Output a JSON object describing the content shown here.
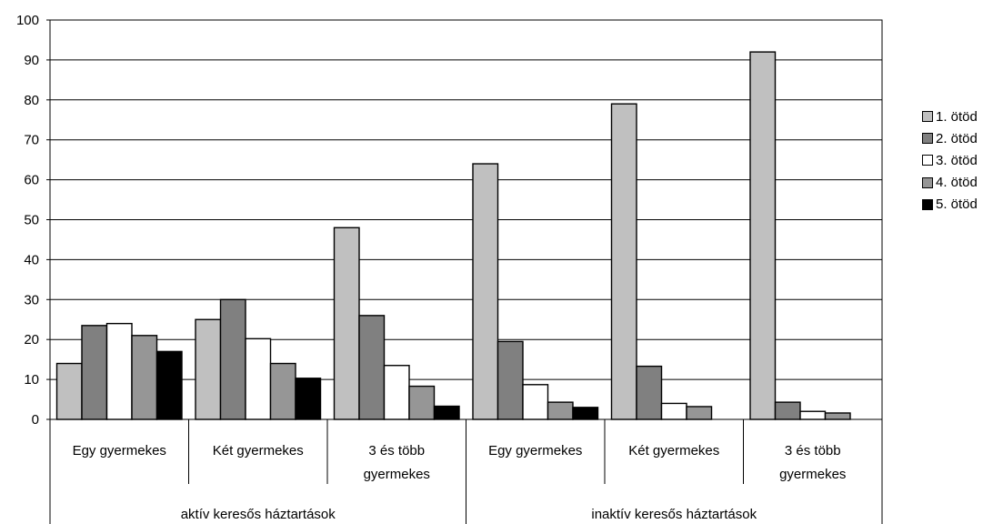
{
  "chart_data": {
    "type": "bar",
    "title": "",
    "xlabel": "",
    "ylabel": "",
    "ylim": [
      0,
      100
    ],
    "yticks": [
      0,
      10,
      20,
      30,
      40,
      50,
      60,
      70,
      80,
      90,
      100
    ],
    "grid": true,
    "legend_position": "right",
    "groups": [
      {
        "label": "aktív keresős háztartások",
        "categories": [
          "Egy gyermekes",
          "Két gyermekes",
          "3 és több gyermekes"
        ]
      },
      {
        "label": "inaktív keresős háztartások",
        "categories": [
          "Egy gyermekes",
          "Két gyermekes",
          "3 és több gyermekes"
        ]
      }
    ],
    "series": [
      {
        "name": "1. ötöd",
        "color": "#c0c0c0",
        "values": [
          14,
          25,
          48,
          64,
          79,
          92
        ]
      },
      {
        "name": "2. ötöd",
        "color": "#808080",
        "values": [
          23.5,
          30,
          26,
          19.5,
          13.3,
          4.3
        ]
      },
      {
        "name": "3. ötöd",
        "color": "#ffffff",
        "values": [
          24,
          20.2,
          13.5,
          8.7,
          4,
          2
        ]
      },
      {
        "name": "4. ötöd",
        "color": "#969696",
        "values": [
          21,
          14,
          8.3,
          4.3,
          3.2,
          1.6
        ]
      },
      {
        "name": "5. ötöd",
        "color": "#000000",
        "values": [
          17,
          10.3,
          3.3,
          3,
          0,
          0
        ]
      }
    ]
  }
}
